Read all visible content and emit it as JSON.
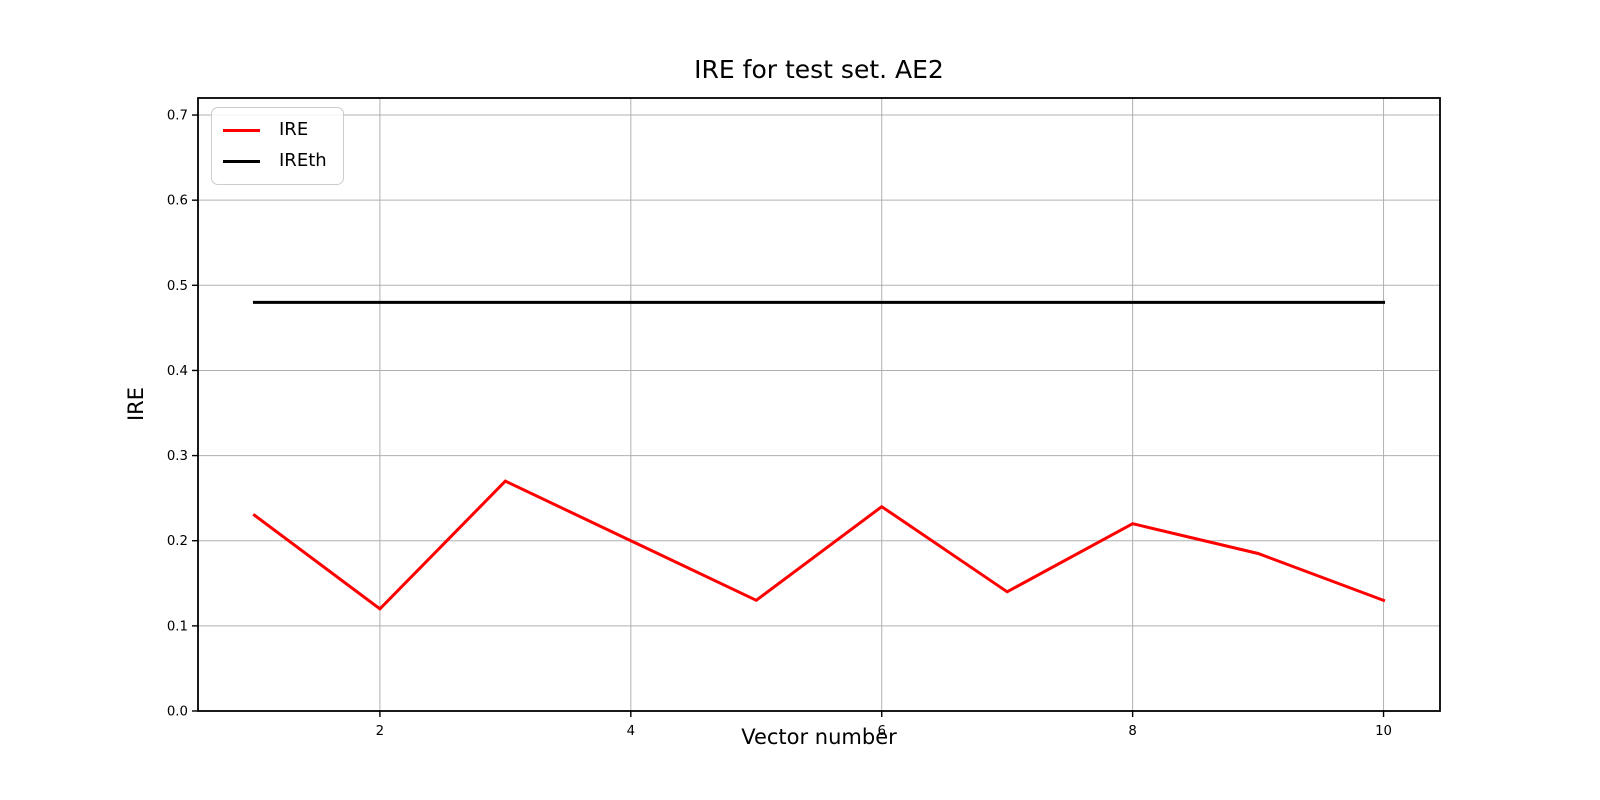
{
  "chart_data": {
    "type": "line",
    "title": "IRE for test set. AE2",
    "xlabel": "Vector number",
    "ylabel": "IRE",
    "x": [
      1,
      2,
      3,
      4,
      5,
      6,
      7,
      8,
      9,
      10
    ],
    "series": [
      {
        "name": "IRE",
        "color": "#ff0000",
        "values": [
          0.23,
          0.12,
          0.27,
          0.2,
          0.13,
          0.24,
          0.14,
          0.22,
          0.185,
          0.13
        ]
      },
      {
        "name": "IREth",
        "color": "#000000",
        "values": [
          0.48,
          0.48,
          0.48,
          0.48,
          0.48,
          0.48,
          0.48,
          0.48,
          0.48,
          0.48
        ]
      }
    ],
    "xlim": [
      0.55,
      10.45
    ],
    "ylim": [
      0.0,
      0.72
    ],
    "xticks": [
      2,
      4,
      6,
      8,
      10
    ],
    "yticks": [
      0.0,
      0.1,
      0.2,
      0.3,
      0.4,
      0.5,
      0.6,
      0.7
    ],
    "grid": true,
    "grid_color": "#b0b0b0",
    "spine_color": "#000000",
    "legend": {
      "position": "upper-left",
      "entries": [
        "IRE",
        "IREth"
      ]
    }
  }
}
